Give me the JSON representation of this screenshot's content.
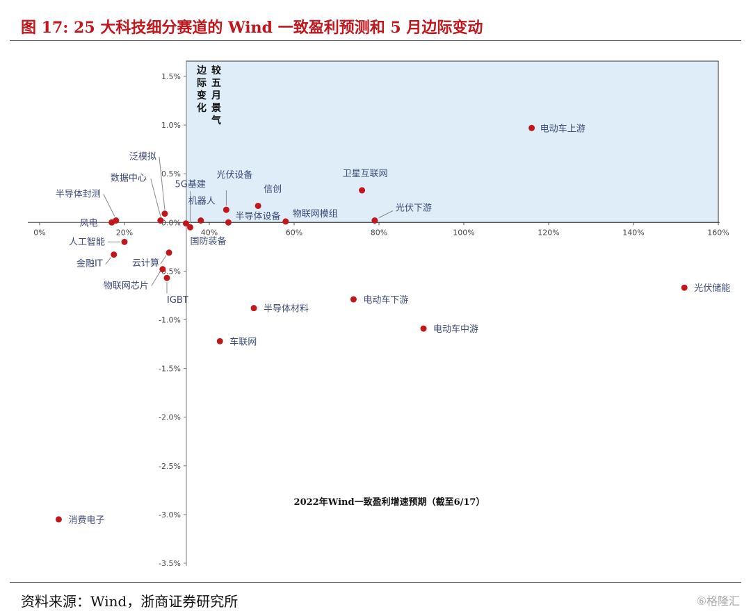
{
  "header": {
    "title": "图 17: 25 大科技细分赛道的 Wind 一致盈利预测和 5 月边际变动"
  },
  "footer": {
    "source": "资料来源：Wind，浙商证券研究所",
    "watermark": "⑥格隆汇"
  },
  "chart_data": {
    "type": "scatter",
    "xlabel": "2022年Wind一致盈利增速预期（截至6/17）",
    "ylabel_left": "边际变化",
    "ylabel_right": "较五月景气",
    "xlim": [
      0,
      160
    ],
    "ylim": [
      -3.5,
      1.5
    ],
    "x_ticks": [
      "0%",
      "20%",
      "40%",
      "60%",
      "80%",
      "100%",
      "120%",
      "140%",
      "160%"
    ],
    "y_ticks": [
      "1.5%",
      "1.0%",
      "0.5%",
      "0.0%",
      "-0.5%",
      "-1.0%",
      "-1.5%",
      "-2.0%",
      "-2.5%",
      "-3.0%",
      "-3.5%"
    ],
    "highlight_quadrant": "x ≥ 35%, y ≥ 0",
    "highlight_color": "#deedf7",
    "point_color": "#c0161c",
    "points": [
      {
        "name": "电动车上游",
        "x": 116.0,
        "y": 0.97
      },
      {
        "name": "卫星互联网",
        "x": 76.0,
        "y": 0.33
      },
      {
        "name": "光伏下游",
        "x": 79.0,
        "y": 0.02
      },
      {
        "name": "光伏储能",
        "x": 152.0,
        "y": -0.67
      },
      {
        "name": "电动车下游",
        "x": 74.0,
        "y": -0.79
      },
      {
        "name": "电动车中游",
        "x": 90.5,
        "y": -1.09
      },
      {
        "name": "半导体材料",
        "x": 50.5,
        "y": -0.88
      },
      {
        "name": "车联网",
        "x": 42.5,
        "y": -1.22
      },
      {
        "name": "光伏设备",
        "x": 44.0,
        "y": 0.13
      },
      {
        "name": "信创",
        "x": 51.5,
        "y": 0.17
      },
      {
        "name": "半导体设备",
        "x": 44.5,
        "y": 0.0
      },
      {
        "name": "物联网模组",
        "x": 58.0,
        "y": 0.01
      },
      {
        "name": "机器人",
        "x": 38.0,
        "y": 0.02
      },
      {
        "name": "5G基建",
        "x": 35.5,
        "y": -0.05
      },
      {
        "name": "国防装备",
        "x": 34.5,
        "y": -0.01
      },
      {
        "name": "泛模拟",
        "x": 29.5,
        "y": 0.09
      },
      {
        "name": "数据中心",
        "x": 28.5,
        "y": 0.02
      },
      {
        "name": "半导体封测",
        "x": 18.0,
        "y": 0.02
      },
      {
        "name": "风电",
        "x": 17.0,
        "y": 0.0
      },
      {
        "name": "人工智能",
        "x": 20.0,
        "y": -0.2
      },
      {
        "name": "金融IT",
        "x": 17.5,
        "y": -0.33
      },
      {
        "name": "云计算",
        "x": 30.5,
        "y": -0.31
      },
      {
        "name": "物联网芯片",
        "x": 29.0,
        "y": -0.48
      },
      {
        "name": "IGBT",
        "x": 30.0,
        "y": -0.57
      },
      {
        "name": "消费电子",
        "x": 4.5,
        "y": -3.05
      }
    ]
  }
}
